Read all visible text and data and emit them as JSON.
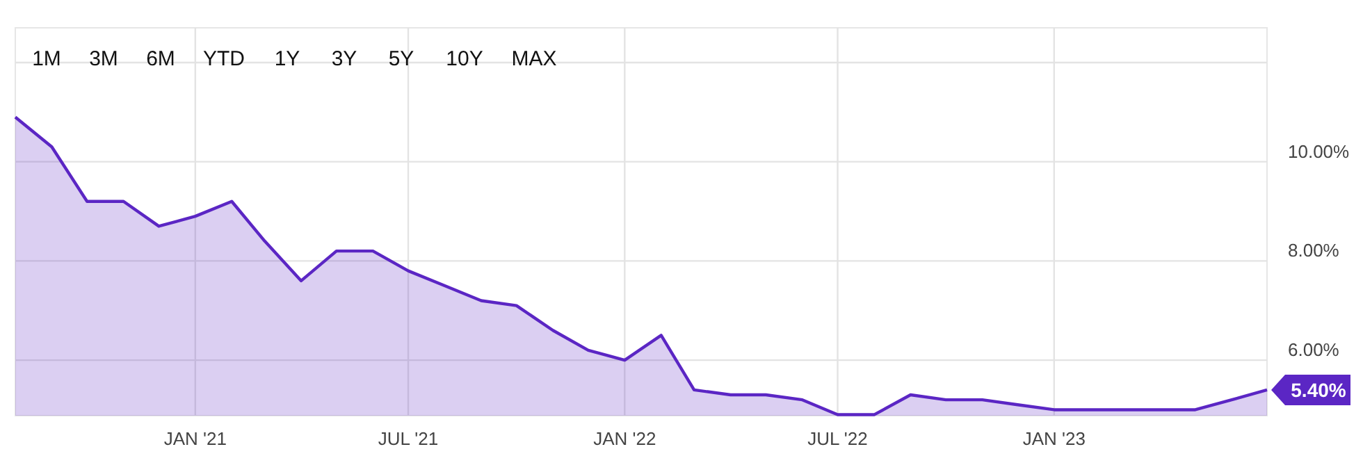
{
  "chart_data": {
    "type": "area",
    "x": [
      "2020-08-01",
      "2020-09-01",
      "2020-10-01",
      "2020-11-01",
      "2020-12-01",
      "2021-01-01",
      "2021-02-01",
      "2021-03-01",
      "2021-04-01",
      "2021-05-01",
      "2021-06-01",
      "2021-07-01",
      "2021-08-01",
      "2021-09-01",
      "2021-10-01",
      "2021-11-01",
      "2021-12-01",
      "2022-01-01",
      "2022-02-01",
      "2022-03-01",
      "2022-04-01",
      "2022-05-01",
      "2022-06-01",
      "2022-07-01",
      "2022-08-01",
      "2022-09-01",
      "2022-10-01",
      "2022-11-01",
      "2022-12-01",
      "2023-01-01",
      "2023-02-01",
      "2023-03-01",
      "2023-04-01",
      "2023-05-01",
      "2023-06-01",
      "2023-07-01"
    ],
    "series": [
      {
        "color": "#5b26c4",
        "values": [
          10.9,
          10.3,
          9.2,
          9.2,
          8.7,
          8.9,
          9.2,
          8.4,
          7.6,
          8.2,
          8.2,
          7.8,
          7.5,
          7.2,
          7.1,
          6.6,
          6.2,
          6.0,
          6.5,
          5.4,
          5.3,
          5.3,
          5.2,
          4.9,
          4.9,
          5.3,
          5.2,
          5.2,
          5.1,
          5.0,
          5.0,
          5.0,
          5.0,
          5.0,
          5.2,
          5.4
        ]
      }
    ],
    "xlim": [
      "2020-08-01",
      "2023-07-01"
    ],
    "xticks": [
      {
        "value": "2021-01-01",
        "label": "JAN '21"
      },
      {
        "value": "2021-07-01",
        "label": "JUL '21"
      },
      {
        "value": "2022-01-01",
        "label": "JAN '22"
      },
      {
        "value": "2022-07-01",
        "label": "JUL '22"
      },
      {
        "value": "2023-01-01",
        "label": "JAN '23"
      }
    ],
    "ylim": [
      4.88,
      12.7
    ],
    "yticks": [
      {
        "value": 6,
        "label": "6.00%"
      },
      {
        "value": 8,
        "label": "8.00%"
      },
      {
        "value": 10,
        "label": "10.00%"
      },
      {
        "value": 12,
        "label": null
      }
    ],
    "grid": true,
    "marker": "none",
    "line_style": "solid",
    "annotations": [
      "1M",
      "3M",
      "6M",
      "YTD",
      "1Y",
      "3Y",
      "5Y",
      "10Y",
      "MAX",
      {
        "text": "5.40%",
        "x": "2023-07-01",
        "y": 5.4
      }
    ]
  }
}
